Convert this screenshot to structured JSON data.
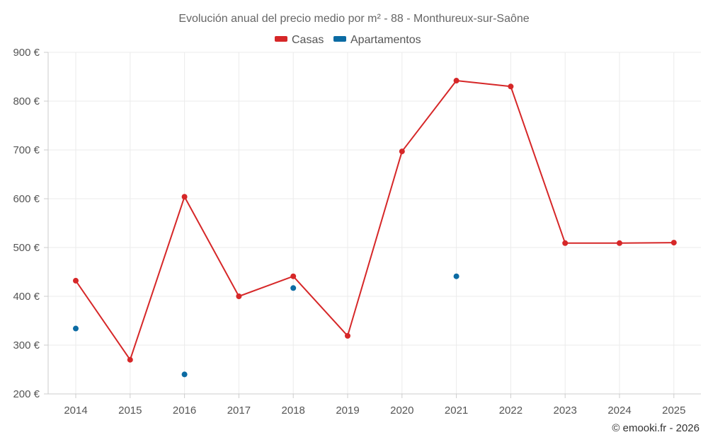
{
  "chart_data": {
    "type": "line",
    "title": "Evolución anual del precio medio por m² - 88 - Monthureux-sur-Saône",
    "categories": [
      "2014",
      "2015",
      "2016",
      "2017",
      "2018",
      "2019",
      "2020",
      "2021",
      "2022",
      "2023",
      "2024",
      "2025"
    ],
    "y_ticks": [
      "200 €",
      "300 €",
      "400 €",
      "500 €",
      "600 €",
      "700 €",
      "800 €",
      "900 €"
    ],
    "ylim": [
      200,
      900
    ],
    "grid": true,
    "legend_position": "top-center",
    "series": [
      {
        "name": "Casas",
        "color": "#d62728",
        "style": "line+markers",
        "values": [
          432,
          270,
          604,
          400,
          441,
          319,
          697,
          842,
          830,
          509,
          509,
          510
        ]
      },
      {
        "name": "Apartamentos",
        "color": "#0b6ba3",
        "style": "markers",
        "values": [
          334,
          null,
          240,
          null,
          417,
          null,
          null,
          441,
          null,
          null,
          null,
          null
        ]
      }
    ]
  },
  "credit": "© emooki.fr - 2026"
}
